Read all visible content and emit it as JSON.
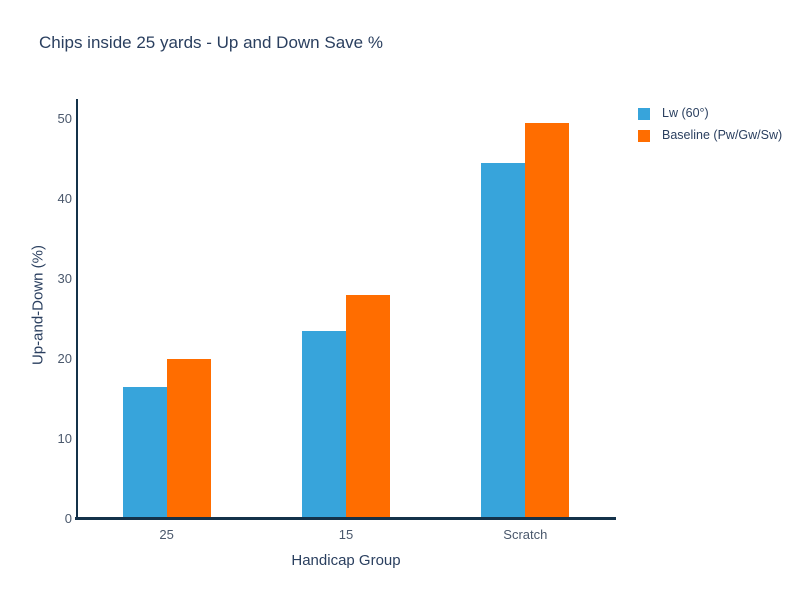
{
  "chart_data": {
    "type": "bar",
    "title": "Chips inside 25 yards - Up and Down Save %",
    "xlabel": "Handicap Group",
    "ylabel": "Up-and-Down (%)",
    "categories": [
      "25",
      "15",
      "Scratch"
    ],
    "series": [
      {
        "name": "Lw (60°)",
        "color": "#37a4db",
        "values": [
          16.5,
          23.5,
          44.5
        ]
      },
      {
        "name": "Baseline (Pw/Gw/Sw)",
        "color": "#ff6d00",
        "values": [
          20,
          28,
          49.5
        ]
      }
    ],
    "ylim": [
      0,
      50
    ],
    "yticks": [
      0,
      10,
      20,
      30,
      40,
      50
    ],
    "grid": false,
    "legend_position": "top-right-outside",
    "colors": {
      "axis_line": "#14324a",
      "title_text": "#2a3f5f",
      "tick_text": "#4a586c"
    }
  }
}
